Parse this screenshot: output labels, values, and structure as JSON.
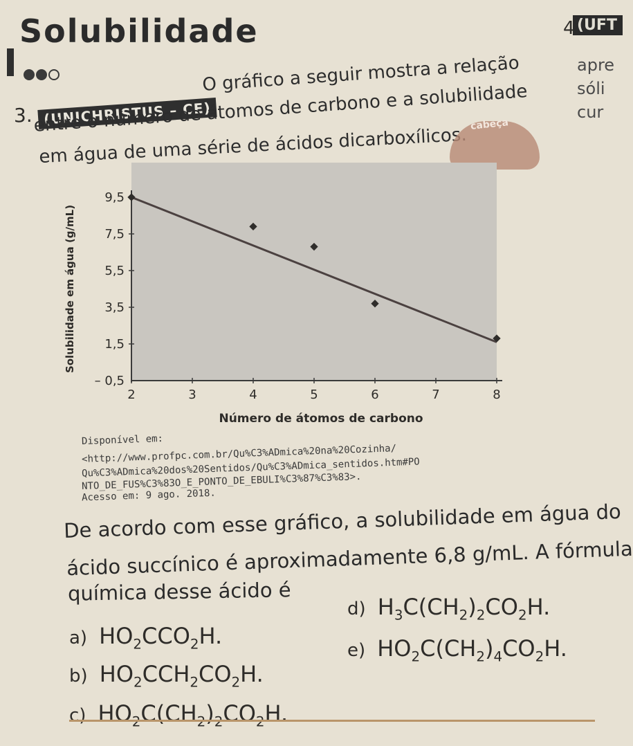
{
  "section": {
    "title": "Solubilidade"
  },
  "question": {
    "number": "3.",
    "source_badge": "(UNICHRISTUS – CE)",
    "intro_lines": [
      "O gráfico a seguir mostra a relação",
      "entre o número de átomos de carbono e a solubilidade",
      "em água de uma série de ácidos dicarboxílicos."
    ],
    "citation_lines": [
      "Disponível em:",
      "<http://www.profpc.com.br/Qu%C3%ADmica%20na%20Cozinha/",
      "Qu%C3%ADmica%20dos%20Sentidos/Qu%C3%ADmica_sentidos.htm#PO",
      "NTO_DE_FUS%C3%83O_E_PONTO_DE_EBULI%C3%87%C3%83>.",
      "Acesso em: 9 ago. 2018."
    ],
    "body_lines": [
      "De acordo com esse gráfico, a solubilidade em água do",
      "ácido succínico é aproximadamente 6,8 g/mL. A fórmula",
      "química desse ácido é"
    ],
    "options": [
      {
        "label": "a)",
        "formula": "HO2CCO2H."
      },
      {
        "label": "b)",
        "formula": "HO2CCH2CO2H."
      },
      {
        "label": "c)",
        "formula": "HO2C(CH2)2CO2H."
      },
      {
        "label": "d)",
        "formula": "H3C(CH2)2CO2H."
      },
      {
        "label": "e)",
        "formula": "HO2C(CH2)4CO2H."
      }
    ]
  },
  "side_column": {
    "number": "4.",
    "badge": "(UFT",
    "fragments": [
      "apre",
      "sóli",
      "cur"
    ]
  },
  "mascot_text": "cabeça",
  "chart_data": {
    "type": "scatter",
    "xlabel": "Número de átomos de carbono",
    "ylabel": "Solubilidade em água (g/mL)",
    "x_ticks": [
      "2",
      "3",
      "4",
      "5",
      "6",
      "7",
      "8"
    ],
    "y_ticks": [
      "– 0,5",
      "1,5",
      "3,5",
      "5,5",
      "7,5",
      "9,5"
    ],
    "xlim": [
      2,
      8
    ],
    "ylim": [
      -0.5,
      9.5
    ],
    "points": [
      {
        "x": 2,
        "y": 9.5
      },
      {
        "x": 4,
        "y": 7.9
      },
      {
        "x": 5,
        "y": 6.8
      },
      {
        "x": 6,
        "y": 3.7
      },
      {
        "x": 8,
        "y": 1.8
      }
    ],
    "trendline": {
      "x": [
        2,
        8
      ],
      "y": [
        9.5,
        1.6
      ]
    },
    "plot_fill": "#c9c6c0",
    "line_color": "#4b4140",
    "point_color": "#2f2d2b"
  }
}
